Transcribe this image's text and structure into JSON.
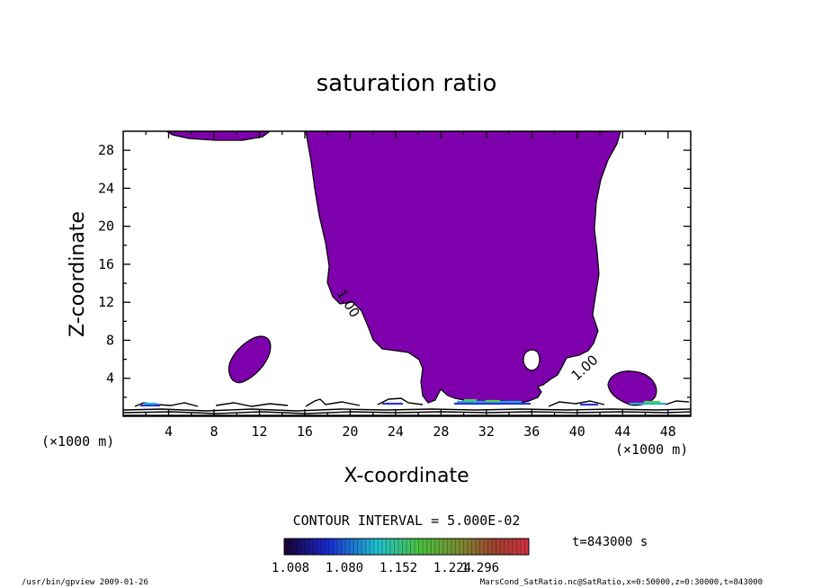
{
  "chart_data": {
    "type": "contour",
    "title": "saturation ratio",
    "xlabel": "X-coordinate",
    "ylabel": "Z-coordinate",
    "x_unit": "(×1000 m)",
    "y_unit": "(×1000 m)",
    "xlim": [
      0,
      50
    ],
    "ylim": [
      0,
      30
    ],
    "xticks": [
      4,
      8,
      12,
      16,
      20,
      24,
      28,
      32,
      36,
      40,
      44,
      48
    ],
    "yticks": [
      4,
      8,
      12,
      16,
      20,
      24,
      28
    ],
    "contour_interval": "CONTOUR INTERVAL = 5.000E-02",
    "contour_labels": [
      "1.00",
      "1.00"
    ],
    "colorbar": {
      "tick_labels": [
        "1.008",
        "1.080",
        "1.152",
        "1.224",
        "1.296"
      ],
      "range": [
        1.0,
        1.3
      ]
    },
    "fill_color": "#7e00ac",
    "time_label": "t=843000 s"
  },
  "footer": {
    "left": "/usr/bin/gpview   2009-01-26",
    "right": "MarsCond_SatRatio.nc@SatRatio,x=0:50000,z=0:30000,t=843000"
  }
}
